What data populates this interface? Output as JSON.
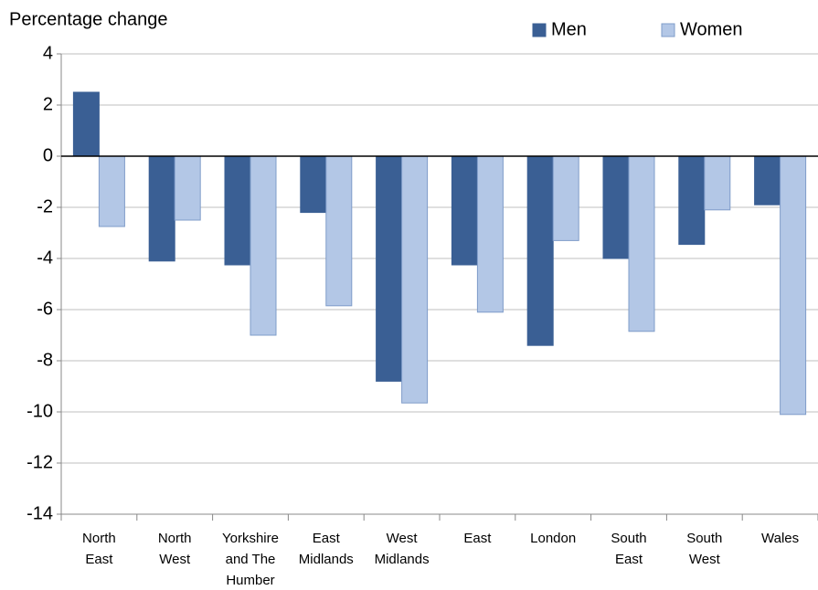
{
  "chart_data": {
    "type": "bar",
    "y_label": "Percentage change",
    "categories": [
      [
        "North",
        "East"
      ],
      [
        "North",
        "West"
      ],
      [
        "Yorkshire",
        "and The",
        "Humber"
      ],
      [
        "East",
        "Midlands"
      ],
      [
        "West",
        "Midlands"
      ],
      [
        "East"
      ],
      [
        "London"
      ],
      [
        "South",
        "East"
      ],
      [
        "South",
        "West"
      ],
      [
        "Wales"
      ]
    ],
    "series": [
      {
        "name": "Men",
        "color": "#3a5f94",
        "values": [
          2.5,
          -4.1,
          -4.25,
          -2.2,
          -8.8,
          -4.25,
          -7.4,
          -4.0,
          -3.45,
          -1.9
        ]
      },
      {
        "name": "Women",
        "color": "#b3c7e6",
        "values": [
          -2.75,
          -2.5,
          -7.0,
          -5.85,
          -9.65,
          -6.1,
          -3.3,
          -6.85,
          -2.1,
          -10.1
        ]
      }
    ],
    "ylim": [
      -14,
      4
    ],
    "yticks": [
      -14,
      -12,
      -10,
      -8,
      -6,
      -4,
      -2,
      0,
      2,
      4
    ],
    "grid": true,
    "legend": "top-right"
  }
}
